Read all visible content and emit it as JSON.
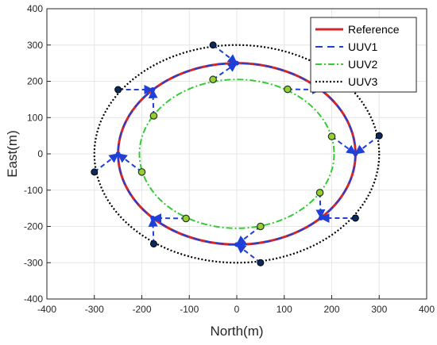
{
  "chart_data": {
    "type": "line",
    "xlabel": "North(m)",
    "ylabel": "East(m)",
    "xlim": [
      -400,
      400
    ],
    "ylim": [
      -400,
      400
    ],
    "xticks": [
      "-400",
      "-300",
      "-200",
      "-100",
      "0",
      "100",
      "200",
      "300",
      "400"
    ],
    "yticks": [
      "400",
      "300",
      "200",
      "100",
      "0",
      "-100",
      "-200",
      "-300",
      "-400"
    ],
    "grid": true,
    "legend_position": "top-right",
    "series": [
      {
        "name": "Reference",
        "shape": "circle",
        "radius": 250,
        "color": "#d62728",
        "style": "solid"
      },
      {
        "name": "UUV1",
        "shape": "circle",
        "radius": 250,
        "color": "#1f3fd6",
        "style": "dashed"
      },
      {
        "name": "UUV2",
        "shape": "circle",
        "radius": 205,
        "color": "#33cc33",
        "style": "dashdot"
      },
      {
        "name": "UUV3",
        "shape": "circle",
        "radius": 300,
        "color": "#000000",
        "style": "dotted"
      }
    ],
    "uuv1_points": [
      [
        0,
        250
      ],
      [
        -177,
        177
      ],
      [
        -250,
        0
      ],
      [
        -177,
        -177
      ],
      [
        0,
        -250
      ],
      [
        177,
        -177
      ],
      [
        250,
        0
      ]
    ],
    "uuv2_points": [
      [
        -50,
        205
      ],
      [
        -175,
        105
      ],
      [
        -200,
        -50
      ],
      [
        -107,
        -178
      ],
      [
        50,
        -200
      ],
      [
        175,
        -107
      ],
      [
        200,
        48
      ],
      [
        107,
        178
      ]
    ],
    "uuv3_points": [
      [
        -50,
        300
      ],
      [
        -250,
        177
      ],
      [
        -300,
        -50
      ],
      [
        -175,
        -248
      ],
      [
        50,
        -300
      ],
      [
        250,
        -177
      ],
      [
        300,
        50
      ]
    ],
    "links": [
      [
        [
          -50,
          300
        ],
        [
          0,
          250
        ]
      ],
      [
        [
          -250,
          177
        ],
        [
          -177,
          177
        ]
      ],
      [
        [
          -300,
          -50
        ],
        [
          -250,
          0
        ]
      ],
      [
        [
          -175,
          -248
        ],
        [
          -177,
          -177
        ]
      ],
      [
        [
          50,
          -300
        ],
        [
          0,
          -250
        ]
      ],
      [
        [
          250,
          -177
        ],
        [
          177,
          -177
        ]
      ],
      [
        [
          300,
          50
        ],
        [
          250,
          0
        ]
      ],
      [
        [
          -50,
          205
        ],
        [
          0,
          250
        ]
      ],
      [
        [
          -175,
          105
        ],
        [
          -177,
          177
        ]
      ],
      [
        [
          -200,
          -50
        ],
        [
          -250,
          0
        ]
      ],
      [
        [
          -107,
          -178
        ],
        [
          -177,
          -177
        ]
      ],
      [
        [
          50,
          -200
        ],
        [
          0,
          -250
        ]
      ],
      [
        [
          175,
          -107
        ],
        [
          177,
          -177
        ]
      ],
      [
        [
          200,
          48
        ],
        [
          250,
          0
        ]
      ],
      [
        [
          107,
          178
        ],
        [
          177,
          177
        ]
      ]
    ]
  }
}
